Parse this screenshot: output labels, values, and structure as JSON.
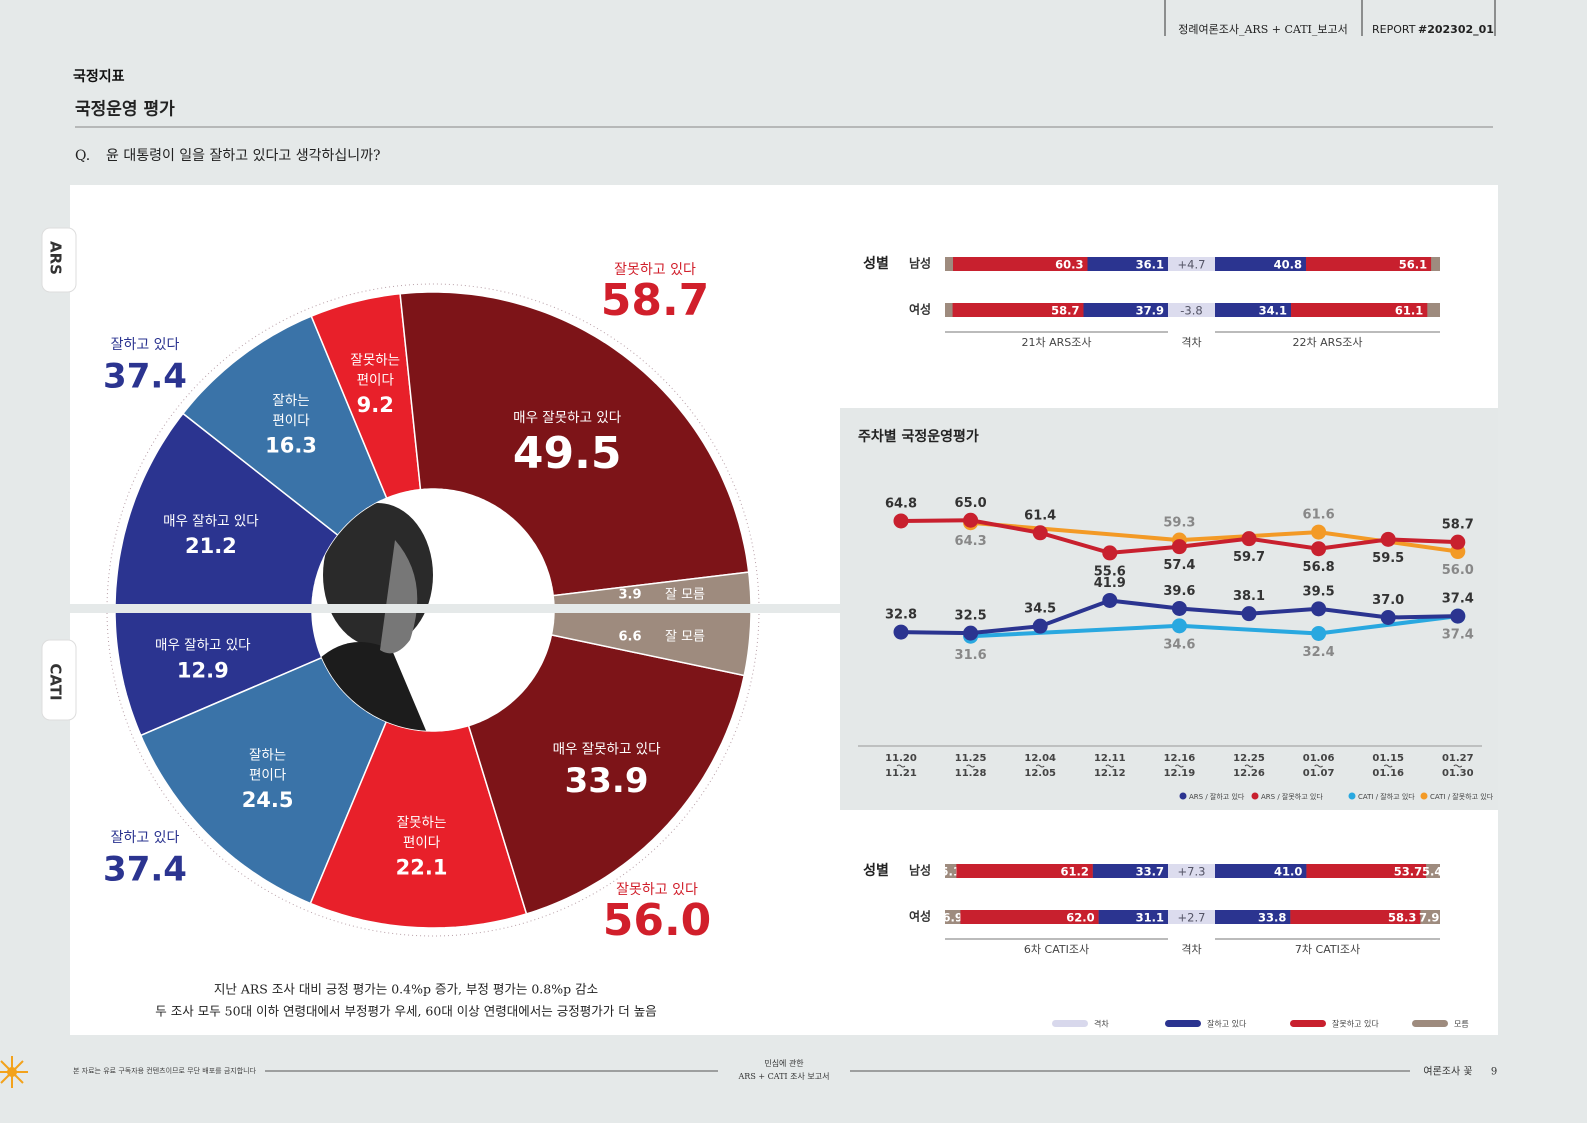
{
  "header": {
    "report_title": "정례여론조사_ARS + CATI_보고서",
    "report_label": "REPORT",
    "report_no": "#202302_01"
  },
  "section": "국정지표",
  "title": "국정운영 평가",
  "question": {
    "prefix": "Q.",
    "text": "윤 대통령이 일을 잘하고 있다고 생각하십니까?"
  },
  "donut": {
    "type": "donut",
    "halves": [
      {
        "name": "ARS",
        "positive": {
          "label": "잘하고 있다",
          "total": "37.4"
        },
        "negative": {
          "label": "잘못하고 있다",
          "total": "58.7"
        },
        "segments": [
          {
            "label": [
              "매우 잘하고 있다"
            ],
            "value": 21.2,
            "color": "#2b3490"
          },
          {
            "label": [
              "잘하는",
              "편이다"
            ],
            "value": 16.3,
            "color": "#3a73a8"
          },
          {
            "label": [
              "잘못하는",
              "편이다"
            ],
            "value": 9.2,
            "color": "#e8202a"
          },
          {
            "label": [
              "매우 잘못하고 있다"
            ],
            "value": 49.5,
            "color": "#7d1418"
          },
          {
            "label": [
              "잘 모름"
            ],
            "value": 3.9,
            "color": "#9e8b7e"
          }
        ]
      },
      {
        "name": "CATI",
        "positive": {
          "label": "잘하고 있다",
          "total": "37.4"
        },
        "negative": {
          "label": "잘못하고 있다",
          "total": "56.0"
        },
        "segments": [
          {
            "label": [
              "매우 잘하고 있다"
            ],
            "value": 12.9,
            "color": "#2b3490"
          },
          {
            "label": [
              "잘하는",
              "편이다"
            ],
            "value": 24.5,
            "color": "#3a73a8"
          },
          {
            "label": [
              "잘못하는",
              "편이다"
            ],
            "value": 22.1,
            "color": "#e8202a"
          },
          {
            "label": [
              "매우 잘못하고 있다"
            ],
            "value": 33.9,
            "color": "#7d1418"
          },
          {
            "label": [
              "잘 모름"
            ],
            "value": 6.6,
            "color": "#9e8b7e"
          }
        ]
      }
    ]
  },
  "notes": [
    "지난 ARS 조사 대비 긍정 평가는 0.4%p 증가, 부정 평가는 0.8%p 감소",
    "두 조사 모두 50대 이하 연령대에서 부정평가 우세, 60대 이상 연령대에서는 긍정평가가 더 높음"
  ],
  "gender_ars": {
    "type": "diverging-bar",
    "label": "성별",
    "groups": [
      "21차 ARS조사",
      "격차",
      "22차 ARS조사"
    ],
    "before_colors": [
      "#c8202e",
      "#2b3490"
    ],
    "after_colors": [
      "#2b3490",
      "#c8202e"
    ],
    "rows": [
      {
        "name": "남성",
        "before": [
          60.3,
          36.1
        ],
        "diff": "+4.7",
        "after": [
          40.8,
          56.1
        ]
      },
      {
        "name": "여성",
        "before": [
          58.7,
          37.9
        ],
        "diff": "-3.8",
        "after": [
          34.1,
          61.1
        ]
      }
    ]
  },
  "line_chart": {
    "type": "line",
    "title": "주차별 국정운영평가",
    "categories": [
      [
        "11.20",
        "11.21"
      ],
      [
        "11.25",
        "11.28"
      ],
      [
        "12.04",
        "12.05"
      ],
      [
        "12.11",
        "12.12"
      ],
      [
        "12.16",
        "12.19"
      ],
      [
        "12.25",
        "12.26"
      ],
      [
        "01.06",
        "01.07"
      ],
      [
        "01.15",
        "01.16"
      ],
      [
        "01.27",
        "01.30"
      ]
    ],
    "ylim": [
      0,
      74
    ],
    "series": [
      {
        "name": "ARS / 잘하고 있다",
        "color": "#2b3490",
        "values": [
          32.8,
          32.5,
          34.5,
          41.9,
          39.6,
          38.1,
          39.5,
          37,
          37.4
        ],
        "value_labels": [
          "32.8",
          "32.5",
          "34.5",
          "41.9",
          "39.6",
          "38.1",
          "39.5",
          "37.0",
          "37.4"
        ]
      },
      {
        "name": "ARS / 잘못하고 있다",
        "color": "#c8202e",
        "values": [
          64.8,
          65,
          61.4,
          55.6,
          57.4,
          59.7,
          56.8,
          59.5,
          58.7
        ],
        "value_labels": [
          "64.8",
          "65.0",
          "61.4",
          "55.6",
          "57.4",
          "59.7",
          "56.8",
          "59.5",
          "58.7"
        ]
      },
      {
        "name": "CATI / 잘하고 있다",
        "color": "#29a8e0",
        "x": [
          [
            "11.25",
            "11.28"
          ],
          [
            "12.16",
            "12.19"
          ],
          [
            "01.06",
            "01.07"
          ],
          [
            "01.27",
            "01.30"
          ]
        ],
        "values": [
          31.6,
          34.6,
          32.4,
          37.4
        ]
      },
      {
        "name": "CATI / 잘못하고 있다",
        "color": "#f39a26",
        "x": [
          [
            "11.25",
            "11.28"
          ],
          [
            "12.16",
            "12.19"
          ],
          [
            "01.06",
            "01.07"
          ],
          [
            "01.27",
            "01.30"
          ]
        ],
        "values": [
          64.3,
          59.3,
          61.6,
          56
        ],
        "value_labels": [
          "64.3",
          "59.3",
          "61.6",
          "56.0"
        ]
      }
    ]
  },
  "gender_cati": {
    "type": "diverging-bar",
    "label": "성별",
    "groups": [
      "6차 CATI조사",
      "격차",
      "7차 CATI조사"
    ],
    "before_colors": [
      "#9e8b7e",
      "#c8202e",
      "#2b3490"
    ],
    "after_colors": [
      "#2b3490",
      "#c8202e",
      "#9e8b7e"
    ],
    "rows": [
      {
        "name": "남성",
        "before": [
          5.1,
          61.2,
          33.7
        ],
        "diff": "+7.3",
        "after": [
          41,
          53.7,
          5.4
        ],
        "after_labels": [
          "41.0",
          "53.7",
          "5.4"
        ]
      },
      {
        "name": "여성",
        "before": [
          6.9,
          62,
          31.1
        ],
        "before_labels": [
          "6.9",
          "62.0",
          "31.1"
        ],
        "diff": "+2.7",
        "after": [
          33.8,
          58.3,
          7.9
        ]
      }
    ]
  },
  "bar_legend": [
    {
      "name": "격차",
      "color": "#d8d8ec"
    },
    {
      "name": "잘하고 있다",
      "color": "#2b3490"
    },
    {
      "name": "잘못하고 있다",
      "color": "#c8202e"
    },
    {
      "name": "모름",
      "color": "#9e8b7e"
    }
  ],
  "footer": {
    "notice": "본 자료는 유료 구독자용 컨텐츠이므로 무단 배포를 금지합니다",
    "center": [
      "민심에 관한",
      "ARS + CATI 조사 보고서"
    ],
    "brand": "여론조사 꽃",
    "page": "9"
  }
}
